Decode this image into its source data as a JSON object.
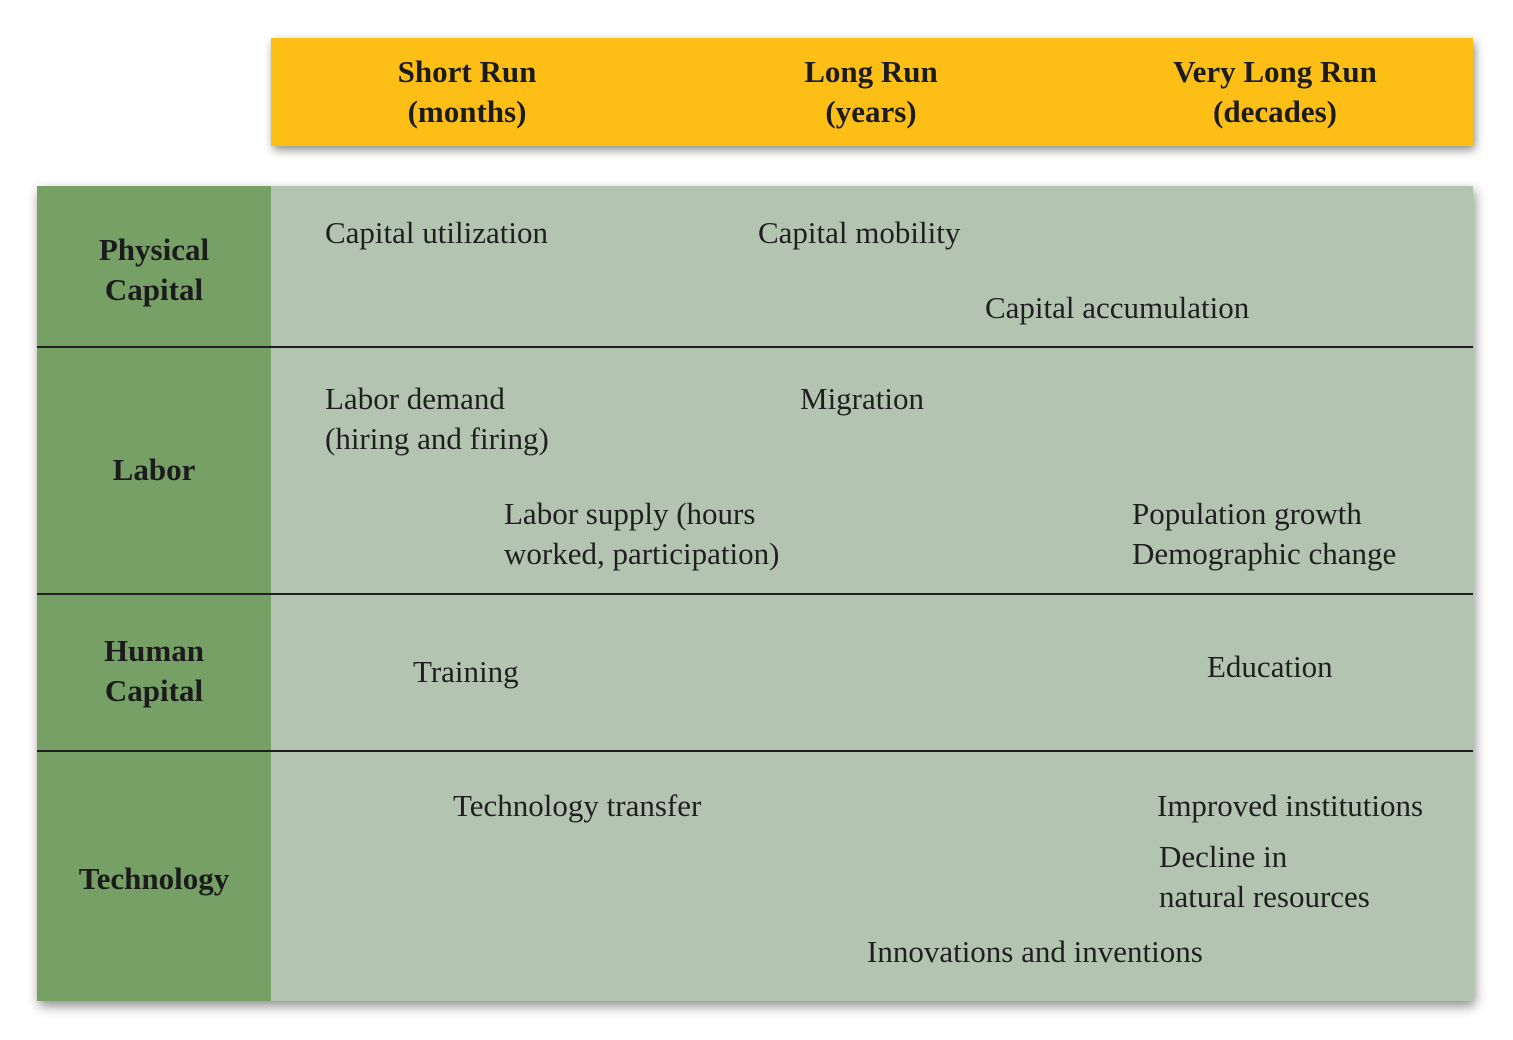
{
  "columns": [
    {
      "title": "Short Run",
      "period": "(months)"
    },
    {
      "title": "Long Run",
      "period": "(years)"
    },
    {
      "title": "Very Long Run",
      "period": "(decades)"
    }
  ],
  "rows": [
    {
      "label_lines": [
        "Physical",
        "Capital"
      ]
    },
    {
      "label_lines": [
        "Labor"
      ]
    },
    {
      "label_lines": [
        "Human",
        "Capital"
      ]
    },
    {
      "label_lines": [
        "Technology"
      ]
    }
  ],
  "physical_capital": {
    "capital_utilization": "Capital utilization",
    "capital_mobility": "Capital mobility",
    "capital_accumulation": "Capital accumulation"
  },
  "labor": {
    "labor_demand": [
      "Labor demand",
      "(hiring and firing)"
    ],
    "migration": "Migration",
    "labor_supply": [
      "Labor supply (hours",
      "worked, participation)"
    ],
    "population": [
      "Population growth",
      "Demographic change"
    ]
  },
  "human_capital": {
    "training": "Training",
    "education": "Education"
  },
  "technology": {
    "technology_transfer": "Technology transfer",
    "improved_institutions": "Improved institutions",
    "decline_resources": [
      "Decline in",
      "natural resources"
    ],
    "innovations": "Innovations and inventions"
  },
  "colors": {
    "header": "#fdbf15",
    "row_header": "#76a066",
    "cell": "#b3c4b1"
  }
}
